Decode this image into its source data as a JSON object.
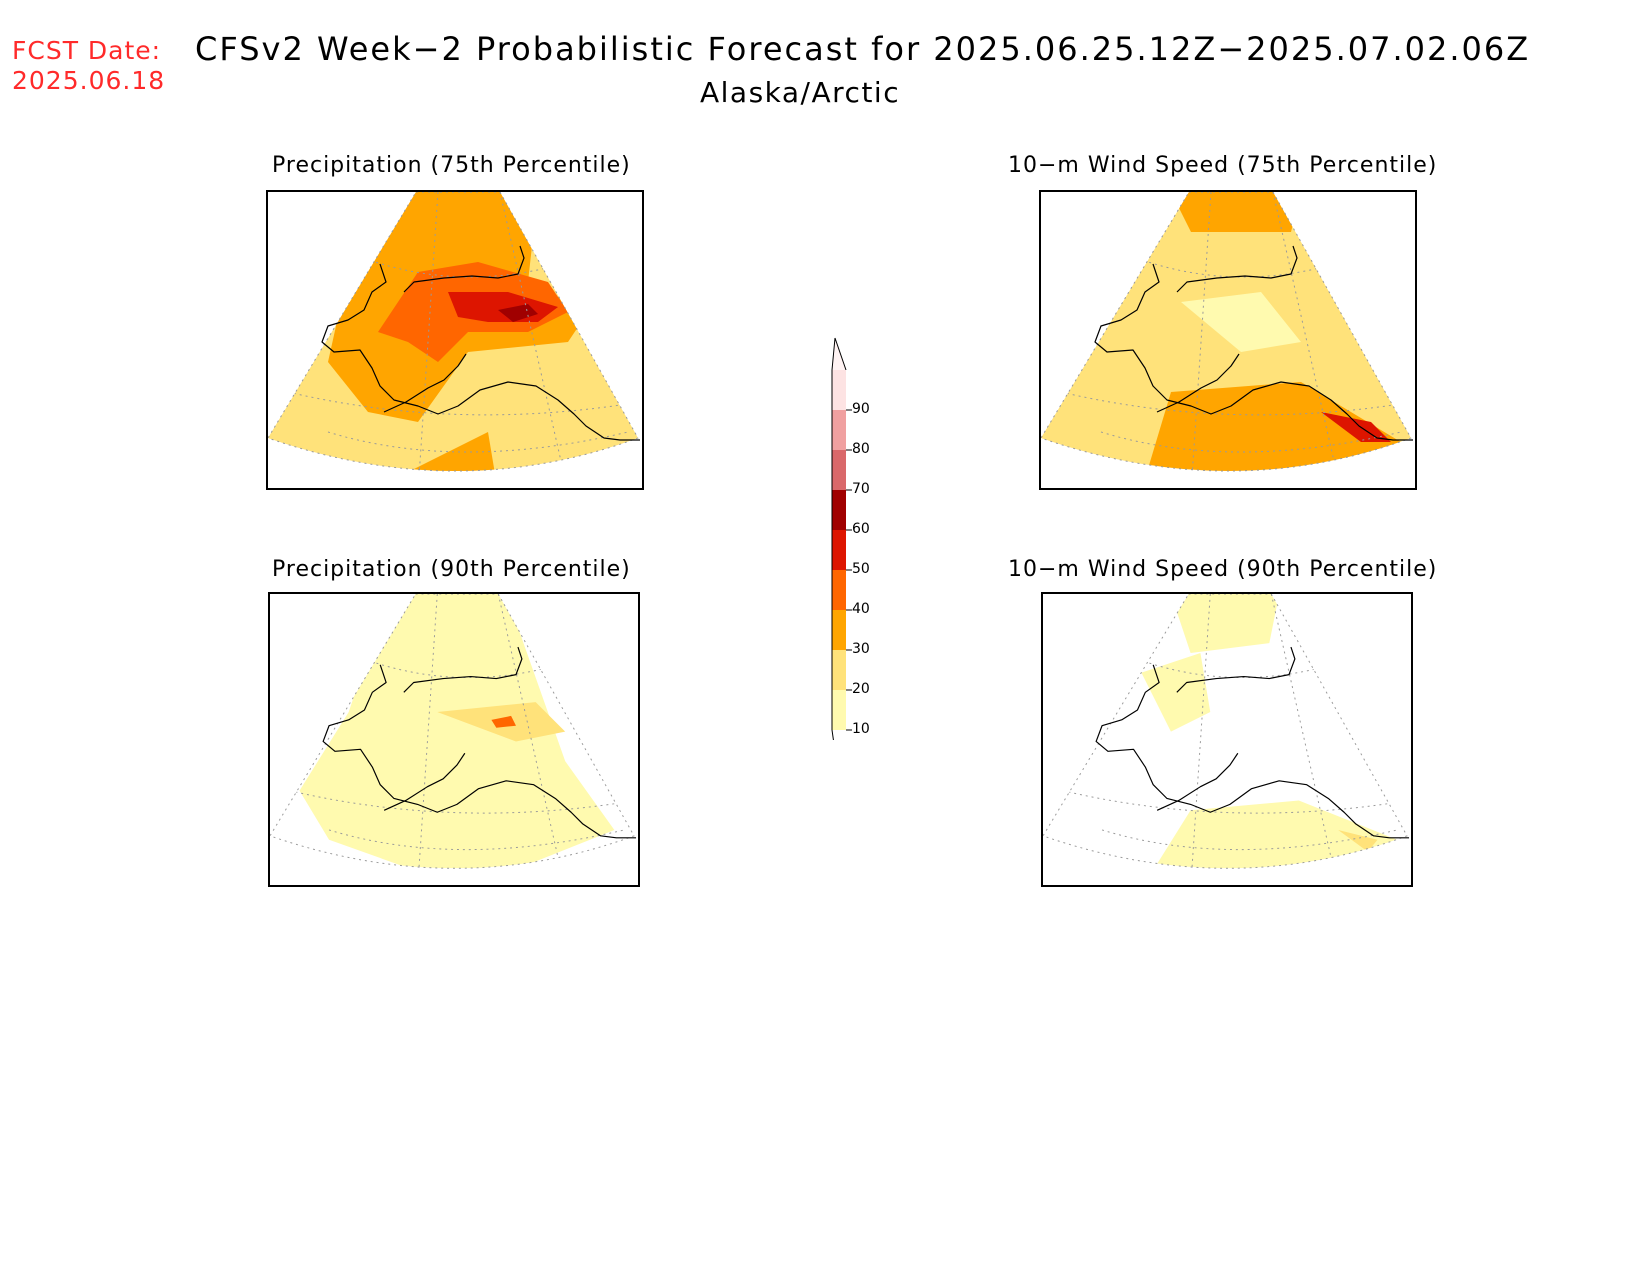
{
  "header": {
    "fcst_label": "FCST Date:",
    "fcst_date": "2025.06.18",
    "title": "CFSv2 Week−2 Probabilistic Forecast for 2025.06.25.12Z−2025.07.02.06Z",
    "subtitle": "Alaska/Arctic"
  },
  "panels": [
    {
      "title": "Precipitation (75th Percentile)",
      "level": "high"
    },
    {
      "title": "10−m Wind Speed (75th Percentile)",
      "level": "mid"
    },
    {
      "title": "Precipitation (90th Percentile)",
      "level": "low"
    },
    {
      "title": "10−m Wind Speed (90th Percentile)",
      "level": "verylow"
    }
  ],
  "colorbar": {
    "labels": [
      "90",
      "80",
      "70",
      "60",
      "50",
      "40",
      "30",
      "20",
      "10"
    ],
    "colors": [
      "#fde3e3",
      "#f0a0a0",
      "#d9686a",
      "#a00000",
      "#dd1500",
      "#ff6600",
      "#ffa500",
      "#ffe27a",
      "#fffaaf"
    ]
  }
}
